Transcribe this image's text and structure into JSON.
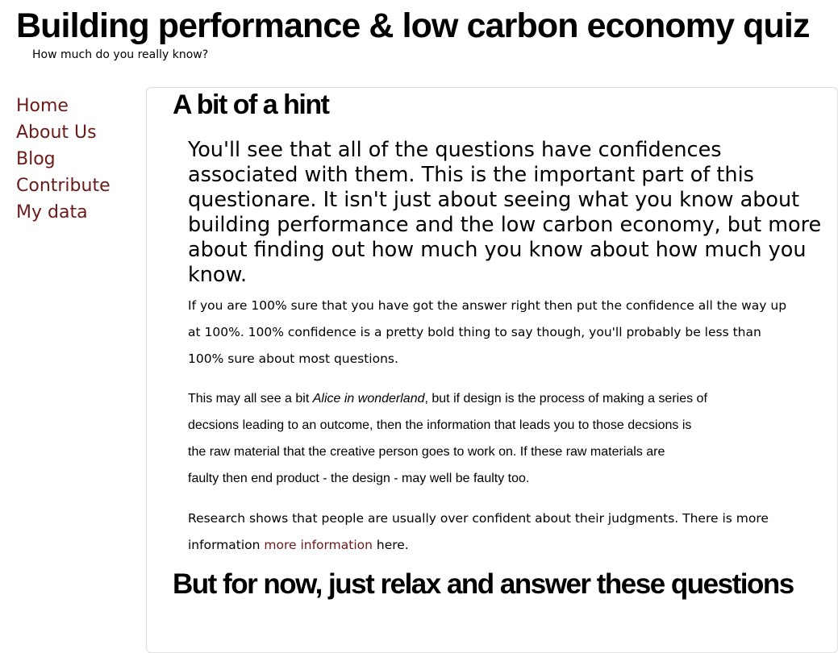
{
  "header": {
    "title": "Building performance & low carbon economy quiz",
    "subtitle": "How much do you really know?"
  },
  "nav": {
    "links": [
      "Home",
      "About Us",
      "Blog",
      "Contribute",
      "My data"
    ]
  },
  "content": {
    "heading": "A bit of a hint",
    "lead": "You'll see that all of the questions have confidences associated with them. This is the important part of this questionare. It isn't just about seeing what you know about building performance and the low carbon economy, but more about finding out how much you know about how much you know.",
    "paragraph1": "If you are 100% sure that you have got the answer right then put the confidence all the way up at 100%. 100% confidence is a pretty bold thing to say though, you'll probably be less than 100% sure about most questions.",
    "paragraph2": {
      "before": "This may all see a bit ",
      "emphasis": "Alice in wonderland",
      "after": ", but if design is the process of making a series of",
      "lines": [
        "decsions leading to an outcome, then the information that leads you to those decsions is",
        "the raw material that the creative person goes to work on. If these raw materials are",
        "faulty then end product - the design - may well be faulty too."
      ]
    },
    "paragraph3": {
      "before": "Research shows that people are usually over confident about their judgments. There is more information ",
      "link": "more information",
      "after": " here."
    },
    "heading2": "But for now, just relax and answer these questions"
  }
}
